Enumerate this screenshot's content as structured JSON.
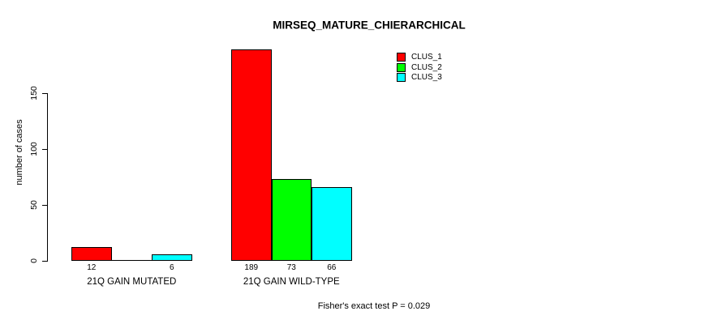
{
  "chart_data": {
    "type": "bar",
    "title": "MIRSEQ_MATURE_CHIERARCHICAL",
    "ylabel": "number of cases",
    "xlabel": "",
    "categories": [
      "21Q GAIN MUTATED",
      "21Q GAIN WILD-TYPE"
    ],
    "series": [
      {
        "name": "CLUS_1",
        "color": "#ff0000",
        "values": [
          12,
          189
        ]
      },
      {
        "name": "CLUS_2",
        "color": "#00ff00",
        "values": [
          0,
          73
        ]
      },
      {
        "name": "CLUS_3",
        "color": "#00ffff",
        "values": [
          6,
          66
        ]
      }
    ],
    "bar_value_labels": [
      [
        "12",
        "",
        "6"
      ],
      [
        "189",
        "73",
        "66"
      ]
    ],
    "y_ticks": [
      "0",
      "50",
      "100",
      "150"
    ],
    "y_tick_values": [
      0,
      50,
      100,
      150
    ],
    "ylim": [
      0,
      199
    ],
    "grid": false,
    "legend_position": "top-right",
    "legend_entries": [
      "CLUS_1",
      "CLUS_2",
      "CLUS_3"
    ],
    "bar_border_color": "#000000",
    "axis_color": "#000000",
    "background": "#ffffff",
    "footnote": "Fisher's exact test P = 0.029"
  }
}
